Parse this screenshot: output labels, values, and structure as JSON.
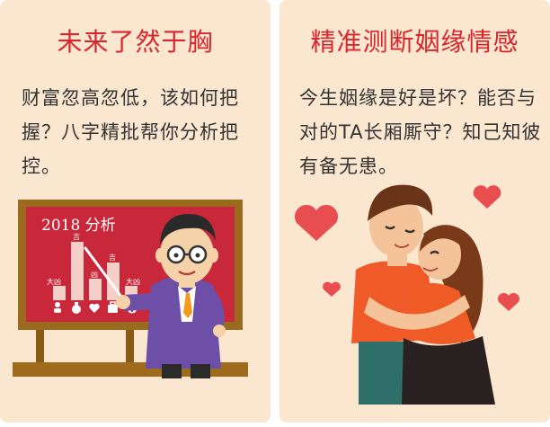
{
  "cards": [
    {
      "title": "未来了然于胸",
      "description": "财富忽高忽低，该如何把握？八字精批帮你分析把控。",
      "board": {
        "heading": "2018 分析",
        "bar_labels": [
          "大凶",
          "吉",
          "凶",
          "吉",
          "大凶"
        ]
      }
    },
    {
      "title": "精准测断姻缘情感",
      "description": "今生姻缘是好是坏？能否与对的TA长厢厮守？知己知彼有备无患。"
    }
  ],
  "colors": {
    "card_bg": "#fbe6cf",
    "title_red": "#d8262c",
    "text": "#333333",
    "board_red": "#c8283a",
    "board_frame": "#9a6b1e",
    "heart": "#e84d4f"
  },
  "icons": [
    "person-icon",
    "money-bag-icon",
    "heart-icon",
    "briefcase-icon",
    "medical-cross-icon"
  ]
}
